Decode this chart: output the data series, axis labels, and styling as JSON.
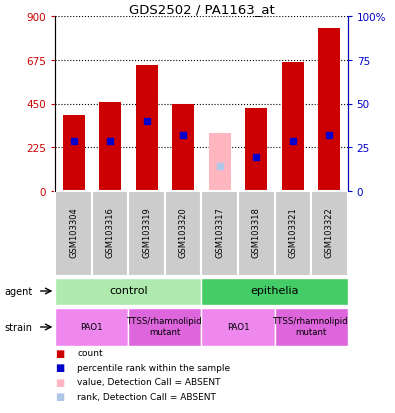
{
  "title": "GDS2502 / PA1163_at",
  "samples": [
    "GSM103304",
    "GSM103316",
    "GSM103319",
    "GSM103320",
    "GSM103317",
    "GSM103318",
    "GSM103321",
    "GSM103322"
  ],
  "bar_heights": [
    390,
    460,
    650,
    445,
    300,
    425,
    665,
    840
  ],
  "bar_colors": [
    "#cc0000",
    "#cc0000",
    "#cc0000",
    "#cc0000",
    "#ffb6c1",
    "#cc0000",
    "#cc0000",
    "#cc0000"
  ],
  "blue_dot_values": [
    255,
    255,
    360,
    290,
    130,
    175,
    255,
    290
  ],
  "blue_dot_colors": [
    "#0000cc",
    "#0000cc",
    "#0000cc",
    "#0000cc",
    "#aec6e8",
    "#0000cc",
    "#0000cc",
    "#0000cc"
  ],
  "ylim_left": [
    0,
    900
  ],
  "ylim_right": [
    0,
    100
  ],
  "yticks_left": [
    0,
    225,
    450,
    675,
    900
  ],
  "yticks_right": [
    0,
    25,
    50,
    75,
    100
  ],
  "ytick_labels_left": [
    "0",
    "225",
    "450",
    "675",
    "900"
  ],
  "ytick_labels_right": [
    "0",
    "25",
    "50",
    "75",
    "100%"
  ],
  "agent_groups": [
    {
      "label": "control",
      "start": 0,
      "end": 4,
      "color": "#aeeaae"
    },
    {
      "label": "epithelia",
      "start": 4,
      "end": 8,
      "color": "#44cc66"
    }
  ],
  "strain_groups": [
    {
      "label": "PAO1",
      "start": 0,
      "end": 2,
      "color": "#ee88ee"
    },
    {
      "label": "TTSS/rhamnolipid\nmutant",
      "start": 2,
      "end": 4,
      "color": "#dd66dd"
    },
    {
      "label": "PAO1",
      "start": 4,
      "end": 6,
      "color": "#ee88ee"
    },
    {
      "label": "TTSS/rhamnolipid\nmutant",
      "start": 6,
      "end": 8,
      "color": "#dd66dd"
    }
  ],
  "left_axis_color": "#cc0000",
  "right_axis_color": "#0000cc",
  "bar_width": 0.6,
  "dot_size": 25,
  "sample_box_color": "#cccccc",
  "legend_colors": [
    "#cc0000",
    "#0000cc",
    "#ffb6c1",
    "#aec6e8"
  ],
  "legend_labels": [
    "count",
    "percentile rank within the sample",
    "value, Detection Call = ABSENT",
    "rank, Detection Call = ABSENT"
  ]
}
